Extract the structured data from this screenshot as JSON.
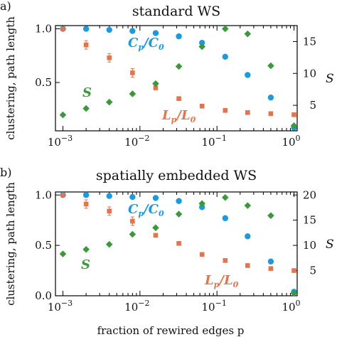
{
  "figure": {
    "xlabel": "fraction of rewired edges p",
    "colors": {
      "C": "#1a9ae0",
      "L": "#e8734a",
      "S": "#3a9a3a"
    },
    "annotations": {
      "C": "C",
      "C_den": "C",
      "L": "L",
      "L_den": "L",
      "sub_p": "p",
      "sub_0": "0",
      "S": "S"
    }
  },
  "chart_data": [
    {
      "type": "scatter",
      "panel_label": "a)",
      "title": "standard WS",
      "ylabel_left": "clustering, path length",
      "ylabel_right": "S",
      "xscale": "log",
      "xlim": [
        0.0008,
        1.1
      ],
      "x_ticks": [
        0.001,
        0.01,
        0.1,
        1
      ],
      "x_tick_labels": [
        "10",
        "10",
        "10",
        "10"
      ],
      "x_tick_exponents": [
        "−3",
        "−2",
        "−1",
        "0"
      ],
      "ylim_left": [
        0.05,
        1.03
      ],
      "yticks_left": [
        0.5,
        1.0
      ],
      "ytick_labels_left": [
        "0.5",
        "1.0"
      ],
      "ylim_right": [
        1,
        17.5
      ],
      "yticks_right": [
        5,
        10,
        15
      ],
      "ytick_labels_right": [
        "5",
        "10",
        "15"
      ],
      "x": [
        0.001,
        0.002,
        0.004,
        0.008,
        0.016,
        0.032,
        0.064,
        0.128,
        0.25,
        0.5,
        1
      ],
      "series": [
        {
          "name": "Cp/C0",
          "axis": "left",
          "marker": "circle",
          "color": "#1a9ae0",
          "values": [
            1.0,
            1.0,
            0.99,
            0.98,
            0.96,
            0.93,
            0.87,
            0.74,
            0.57,
            0.36,
            0.08
          ]
        },
        {
          "name": "Lp/L0",
          "axis": "left",
          "marker": "square",
          "color": "#e8734a",
          "values": [
            1.0,
            0.85,
            0.73,
            0.59,
            0.45,
            0.35,
            0.28,
            0.24,
            0.22,
            0.21,
            0.2
          ]
        },
        {
          "name": "S",
          "axis": "right",
          "marker": "diamond",
          "color": "#3a9a3a",
          "values": [
            3.5,
            4.5,
            5.5,
            6.8,
            8.4,
            11.1,
            14.2,
            17.0,
            16.2,
            11.2,
            1.8
          ]
        }
      ]
    },
    {
      "type": "scatter",
      "panel_label": "b)",
      "title": "spatially embedded WS",
      "ylabel_left": "clustering, path length",
      "ylabel_right": "S",
      "xscale": "log",
      "xlim": [
        0.0008,
        1.1
      ],
      "x_ticks": [
        0.001,
        0.01,
        0.1,
        1
      ],
      "x_tick_labels": [
        "10",
        "10",
        "10",
        "10"
      ],
      "x_tick_exponents": [
        "−3",
        "−2",
        "−1",
        "0"
      ],
      "ylim_left": [
        0,
        1.03
      ],
      "yticks_left": [
        0,
        0.5,
        1.0
      ],
      "ytick_labels_left": [
        "0.0",
        "0.5",
        "1.0"
      ],
      "ylim_right": [
        0,
        20.6
      ],
      "yticks_right": [
        5,
        10,
        15,
        20
      ],
      "ytick_labels_right": [
        "5",
        "10",
        "15",
        "20"
      ],
      "x": [
        0.001,
        0.002,
        0.004,
        0.008,
        0.016,
        0.032,
        0.064,
        0.128,
        0.25,
        0.5,
        1
      ],
      "series": [
        {
          "name": "Cp/C0",
          "axis": "left",
          "marker": "circle",
          "color": "#1a9ae0",
          "values": [
            1.0,
            1.0,
            0.99,
            0.98,
            0.97,
            0.94,
            0.88,
            0.77,
            0.59,
            0.34,
            0.04
          ]
        },
        {
          "name": "Lp/L0",
          "axis": "left",
          "marker": "square",
          "color": "#e8734a",
          "values": [
            1.0,
            0.91,
            0.84,
            0.74,
            0.6,
            0.52,
            0.41,
            0.35,
            0.3,
            0.27,
            0.25
          ]
        },
        {
          "name": "S",
          "axis": "right",
          "marker": "diamond",
          "color": "#3a9a3a",
          "values": [
            8.3,
            9.2,
            10.2,
            12.2,
            13.5,
            16.2,
            18.3,
            19.5,
            17.9,
            15.9,
            0.5
          ]
        }
      ]
    }
  ]
}
